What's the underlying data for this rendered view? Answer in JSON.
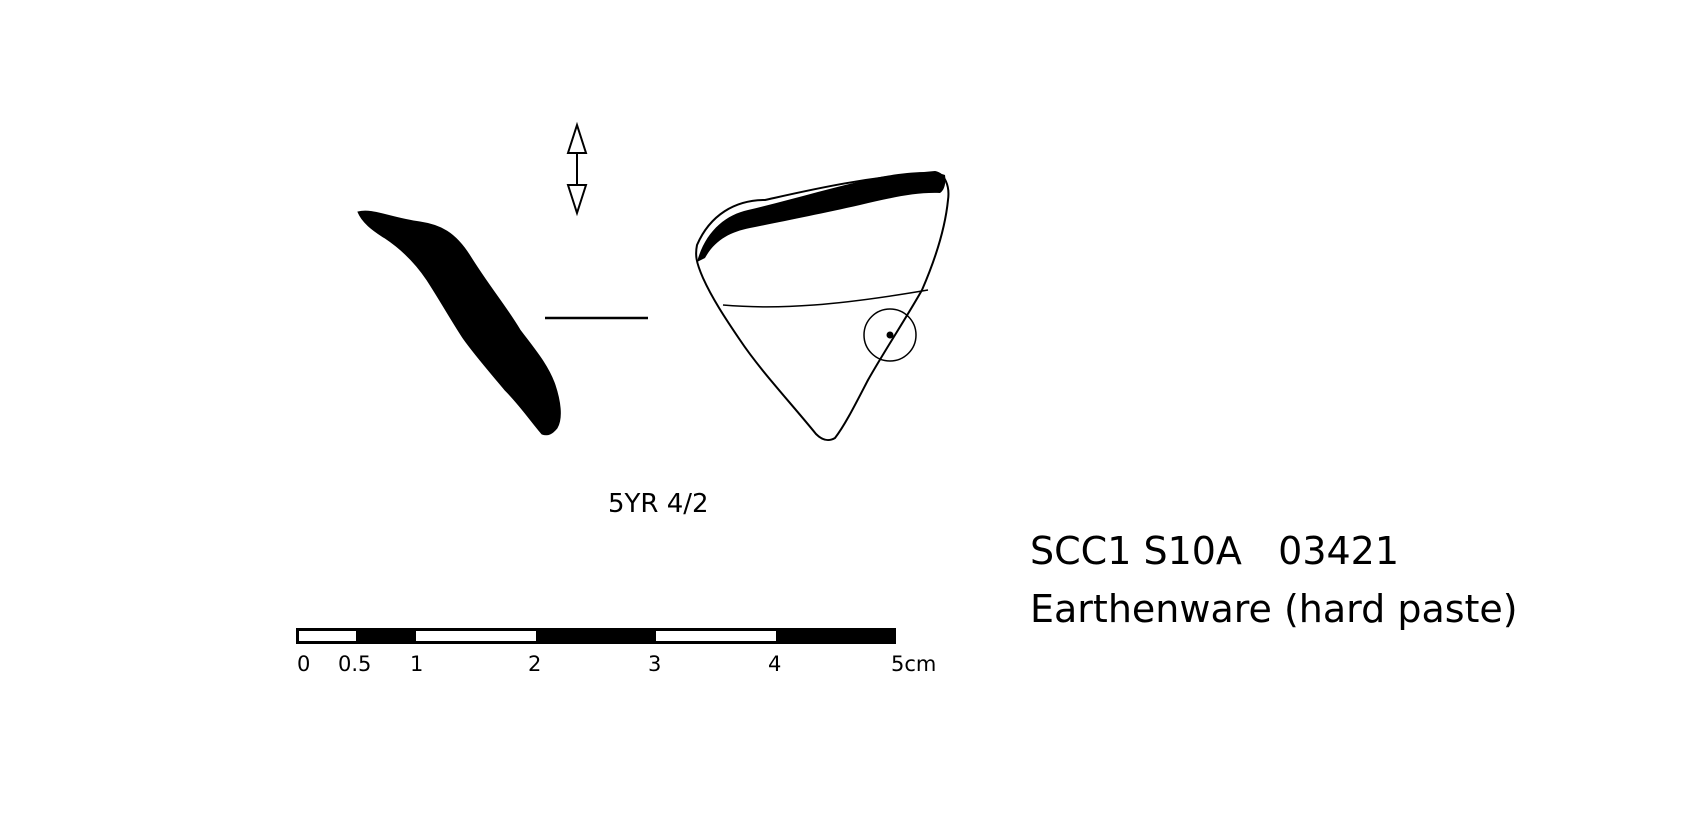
{
  "sherd": {
    "color_code": "5YR 4/2",
    "catalog_line": "SCC1 S10A   03421",
    "material": "Earthenware (hard paste)"
  },
  "scale_bar": {
    "unit": "cm",
    "tick_labels": [
      "0",
      "0.5",
      "1",
      "2",
      "3",
      "4",
      "5cm"
    ],
    "segments": [
      {
        "from": 0,
        "to": 0.5,
        "fill": "white"
      },
      {
        "from": 0.5,
        "to": 1,
        "fill": "black"
      },
      {
        "from": 1,
        "to": 2,
        "fill": "white"
      },
      {
        "from": 2,
        "to": 3,
        "fill": "black"
      },
      {
        "from": 3,
        "to": 4,
        "fill": "white"
      },
      {
        "from": 4,
        "to": 5,
        "fill": "black"
      }
    ]
  }
}
